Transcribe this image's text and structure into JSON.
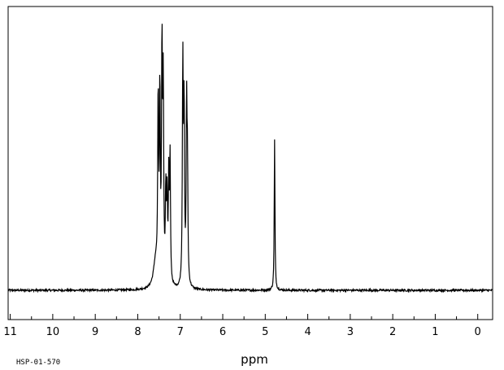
{
  "sample_id": "HSP-01-570",
  "chart_data": {
    "type": "line",
    "title": "",
    "xlabel": "ppm",
    "ylabel": "",
    "xlim": [
      11.05,
      -0.35
    ],
    "ylim": [
      -0.02,
      1.05
    ],
    "x_reversed": true,
    "grid": false,
    "ticks": [
      {
        "value": 11,
        "label": "11"
      },
      {
        "value": 10,
        "label": "10"
      },
      {
        "value": 9,
        "label": "9"
      },
      {
        "value": 8,
        "label": "8"
      },
      {
        "value": 7,
        "label": "7"
      },
      {
        "value": 6,
        "label": "6"
      },
      {
        "value": 5,
        "label": "5"
      },
      {
        "value": 4,
        "label": "4"
      },
      {
        "value": 3,
        "label": "3"
      },
      {
        "value": 2,
        "label": "2"
      },
      {
        "value": 1,
        "label": "1"
      },
      {
        "value": 0,
        "label": "0"
      }
    ],
    "peaks": [
      {
        "ppm": 7.58,
        "intensity": 0.1,
        "width": 0.06
      },
      {
        "ppm": 7.52,
        "intensity": 0.7,
        "width": 0.012
      },
      {
        "ppm": 7.48,
        "intensity": 0.72,
        "width": 0.012
      },
      {
        "ppm": 7.43,
        "intensity": 0.9,
        "width": 0.012
      },
      {
        "ppm": 7.4,
        "intensity": 0.74,
        "width": 0.012
      },
      {
        "ppm": 7.34,
        "intensity": 0.34,
        "width": 0.012
      },
      {
        "ppm": 7.31,
        "intensity": 0.32,
        "width": 0.012
      },
      {
        "ppm": 7.27,
        "intensity": 0.4,
        "width": 0.012
      },
      {
        "ppm": 7.24,
        "intensity": 0.48,
        "width": 0.012
      },
      {
        "ppm": 6.94,
        "intensity": 0.86,
        "width": 0.012
      },
      {
        "ppm": 6.91,
        "intensity": 0.68,
        "width": 0.012
      },
      {
        "ppm": 6.85,
        "intensity": 0.66,
        "width": 0.012
      },
      {
        "ppm": 6.83,
        "intensity": 0.4,
        "width": 0.012
      },
      {
        "ppm": 4.78,
        "intensity": 0.58,
        "width": 0.01
      }
    ],
    "noise_amplitude": 0.004
  }
}
